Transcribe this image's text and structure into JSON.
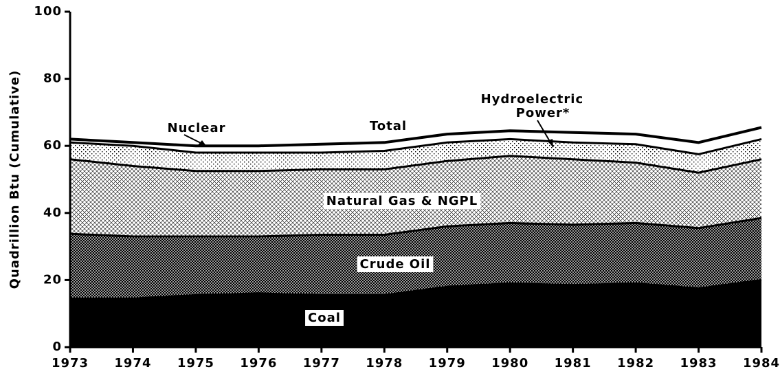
{
  "chart_data": {
    "type": "stacked_area",
    "ylabel": "Quadrillion Btu (Cumulative)",
    "x": [
      1973,
      1974,
      1975,
      1976,
      1977,
      1978,
      1979,
      1980,
      1981,
      1982,
      1983,
      1984
    ],
    "xlim": [
      1973,
      1984
    ],
    "xticks": [
      1973,
      1974,
      1975,
      1976,
      1977,
      1978,
      1979,
      1980,
      1981,
      1982,
      1983,
      1984
    ],
    "ylim": [
      0,
      100
    ],
    "yticks": [
      0,
      20,
      40,
      60,
      80,
      100
    ],
    "series": [
      {
        "name": "Coal",
        "color": "#000000",
        "pattern": "solid",
        "values": [
          14.5,
          14.5,
          15.5,
          16,
          15.5,
          15.5,
          18,
          19,
          18.5,
          19,
          17.5,
          20
        ]
      },
      {
        "name": "Crude Oil",
        "color": "#555555",
        "pattern": "crosshatch",
        "values": [
          19.3,
          18.5,
          17.5,
          17,
          18,
          18,
          18,
          18,
          18,
          18,
          18,
          18.5
        ]
      },
      {
        "name": "Natural Gas & NGPL",
        "color": "#bbbbbb",
        "pattern": "lightcross",
        "values": [
          22.2,
          21,
          19.5,
          19.5,
          19.5,
          19.5,
          19.5,
          20,
          19.5,
          18,
          16.5,
          17.5
        ]
      },
      {
        "name": "Hydroelectric Power*",
        "color": "#dddddd",
        "pattern": "dots",
        "values": [
          5,
          6,
          5.5,
          5.5,
          5,
          5.5,
          5.5,
          5,
          5,
          5.5,
          5.5,
          6
        ]
      },
      {
        "name": "Nuclear",
        "color": "#ffffff",
        "pattern": "solid",
        "values": [
          1,
          1,
          2,
          2,
          2.5,
          2.5,
          2.5,
          2.5,
          3,
          3,
          3.5,
          3.5
        ]
      }
    ],
    "annotations": [
      "Total"
    ]
  }
}
